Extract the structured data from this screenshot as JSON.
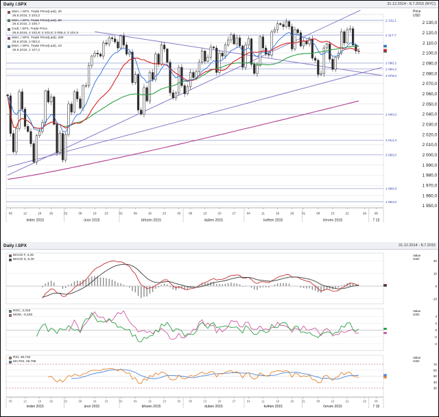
{
  "top": {
    "title": "Daily /.SPX",
    "date_range": "31.12.2014 - 8.7.2015 (NYC)",
    "price_axis": {
      "line1": "Price",
      "line2": "USD"
    },
    "legend": [
      {
        "color": "#d42020",
        "label": "SMA, /.SPX, Trade Price(Last), 20",
        "value": "26.6.2015, 2 103,2"
      },
      {
        "color": "#2f9e44",
        "label": "SMA, /.SPX, Trade Price(Last), 50",
        "value": "26.6.2015, 2 106,7"
      },
      {
        "color": "#5a5a5a",
        "label": "Cndl, /.SPX, Trade Price",
        "value": "26.6.2015, 2 102,8; 2 102,8; 2 095,4; 2 101,5"
      },
      {
        "color": "#b03a8c",
        "label": "SMA, /.SPX, Trade Price(Last), 200",
        "value": "26.6.2015, 2 053,2"
      },
      {
        "color": "#2f6fd4",
        "label": "EMA, /.SPX, Trade Price(Last), 10",
        "value": "26.6.2015, 2 107,2"
      }
    ]
  },
  "bottom": {
    "title": "Daily /.SPX",
    "date_range": "31.12.2014 - 8.7.2015",
    "panels": [
      {
        "name": "MACD",
        "axis": {
          "line1": "Value",
          "line2": "USD"
        },
        "legend": [
          {
            "color": "#c43030",
            "label": "MACD F, 3,45"
          },
          {
            "color": "#3a3a3a",
            "label": "MACD S, 5,40"
          }
        ]
      },
      {
        "name": "ROC",
        "axis": {
          "line1": "Value",
          "line2": "USD"
        },
        "legend": [
          {
            "color": "#2f9e44",
            "label": "ROC, 2,316"
          },
          {
            "color": "#cf5aa0",
            "label": "MOM, -0,228"
          }
        ]
      },
      {
        "name": "RSI",
        "axis": {
          "line1": "Value",
          "line2": "USD"
        },
        "legend": [
          {
            "color": "#e0842e",
            "label": "RSI, 48,732"
          },
          {
            "color": "#4a86d8",
            "label": "MA RSI, 49,796"
          }
        ]
      }
    ]
  },
  "colors": {
    "sma20": "#d42020",
    "sma50": "#2f9e44",
    "ema10": "#2f6fd4",
    "sma200": "#b03a8c",
    "trend": "#8678c8",
    "level": "#8890cc",
    "level_label": "#2c3bb0",
    "candle_up": "#ffffff",
    "candle_down": "#2a2a2a",
    "candle_border": "#3a3a3a",
    "macd_line": "#c43030",
    "macd_signal": "#3a3a3a",
    "macd_hist": "#8a8a8a",
    "roc": "#2f9e44",
    "mom": "#cf5aa0",
    "rsi": "#e0842e",
    "rsi_ma": "#4a86d8",
    "grid": "#e2e2e6",
    "axis_text": "#222222"
  },
  "chart_data": [
    {
      "type": "candlestick",
      "title": "Daily /.SPX",
      "subtitle": "31.12.2014 - 8.7.2015 (NYC)",
      "ylabel": "Price USD",
      "ylim": [
        1948,
        2138
      ],
      "yticks": [
        2130,
        2120,
        2110,
        2100,
        2090,
        2080,
        2070,
        2060,
        2050,
        2040,
        2030,
        2020,
        2010,
        2000,
        1990,
        1980,
        1970,
        1960,
        1950
      ],
      "open_first": 2059,
      "closes": [
        2058,
        2021,
        2003,
        2026,
        2062,
        2045,
        2028,
        2023,
        2011,
        1993,
        2019,
        2023,
        2032,
        2063,
        2052,
        2057,
        2030,
        2002,
        2021,
        1995,
        2020,
        2050,
        2042,
        2062,
        2055,
        2046,
        2068,
        2068,
        2088,
        2097,
        2100,
        2099,
        2097,
        2110,
        2109,
        2115,
        2114,
        2111,
        2105,
        2117,
        2108,
        2099,
        2101,
        2071,
        2079,
        2044,
        2040,
        2066,
        2053,
        2081,
        2074,
        2099,
        2089,
        2108,
        2104,
        2091,
        2061,
        2056,
        2061,
        2086,
        2068,
        2060,
        2067,
        2081,
        2076,
        2082,
        2091,
        2102,
        2092,
        2096,
        2106,
        2105,
        2081,
        2100,
        2097,
        2108,
        2113,
        2118,
        2109,
        2115,
        2107,
        2086,
        2108,
        2114,
        2089,
        2080,
        2088,
        2116,
        2105,
        2099,
        2098,
        2121,
        2123,
        2129,
        2128,
        2126,
        2131,
        2126,
        2104,
        2123,
        2120,
        2107,
        2112,
        2109,
        2114,
        2095,
        2093,
        2079,
        2080,
        2105,
        2109,
        2094,
        2084,
        2096,
        2100,
        2121,
        2110,
        2123,
        2124,
        2108,
        2102,
        2101.5
      ],
      "total_slots": 130,
      "day_ticks": [
        {
          "label": "05",
          "i": 1
        },
        {
          "label": "12",
          "i": 6
        },
        {
          "label": "19",
          "i": 11
        },
        {
          "label": "26",
          "i": 15
        },
        {
          "label": "02",
          "i": 20
        },
        {
          "label": "09",
          "i": 25
        },
        {
          "label": "16",
          "i": 30
        },
        {
          "label": "23",
          "i": 34
        },
        {
          "label": "02",
          "i": 39
        },
        {
          "label": "09",
          "i": 44
        },
        {
          "label": "16",
          "i": 49
        },
        {
          "label": "23",
          "i": 54
        },
        {
          "label": "30",
          "i": 59
        },
        {
          "label": "06",
          "i": 63
        },
        {
          "label": "13",
          "i": 68
        },
        {
          "label": "20",
          "i": 73
        },
        {
          "label": "27",
          "i": 78
        },
        {
          "label": "04",
          "i": 83
        },
        {
          "label": "11",
          "i": 88
        },
        {
          "label": "18",
          "i": 93
        },
        {
          "label": "26",
          "i": 98
        },
        {
          "label": "01",
          "i": 102
        },
        {
          "label": "08",
          "i": 107
        },
        {
          "label": "15",
          "i": 112
        },
        {
          "label": "22",
          "i": 117
        },
        {
          "label": "29",
          "i": 123
        },
        {
          "label": "06",
          "i": 127
        }
      ],
      "month_labels": [
        {
          "label": "leden 2015",
          "i": 9.5
        },
        {
          "label": "únor 2015",
          "i": 29
        },
        {
          "label": "březen 2015",
          "i": 49.5
        },
        {
          "label": "duben 2015",
          "i": 71
        },
        {
          "label": "květen 2015",
          "i": 91.5
        },
        {
          "label": "červen 2015",
          "i": 112
        },
        {
          "label": "7 15",
          "i": 127
        }
      ],
      "month_boundaries": [
        -0.5,
        19.5,
        38.5,
        60.5,
        81.5,
        101.5,
        124.5,
        129.5
      ],
      "levels": [
        {
          "label": "2 132,1",
          "value": 2132.1
        },
        {
          "label": "2 117,7",
          "value": 2117.7
        },
        {
          "label": "2 090,2",
          "value": 2090.2
        },
        {
          "label": "2 078,0",
          "value": 2078.0
        },
        {
          "label": "2 084,3",
          "value": 2084.3
        },
        {
          "label": "2 040,0",
          "value": 2040.0
        },
        {
          "label": "2 014,4",
          "value": 2014.4
        },
        {
          "label": "2 000,0",
          "value": 2000.0
        },
        {
          "label": "1 966,9",
          "value": 1966.9
        },
        {
          "label": "1 954,0",
          "value": 1954.0
        }
      ],
      "trend_lines": [
        {
          "i1": 0,
          "v1": 1980,
          "i2": 129,
          "v2": 2152
        },
        {
          "i1": 0,
          "v1": 1988,
          "i2": 129,
          "v2": 2086
        },
        {
          "i1": 30,
          "v1": 2121,
          "i2": 129,
          "v2": 2078
        }
      ],
      "sma_periods": {
        "sma20": 20,
        "sma50": 50,
        "ema10": 10,
        "sma200": 200
      },
      "sma200_approx": {
        "start": 1976,
        "end": 2053
      }
    },
    {
      "type": "bar",
      "name": "MACD",
      "params": {
        "fast": 12,
        "slow": 26,
        "signal": 9
      },
      "ylim": [
        -14,
        26
      ],
      "yticks": [
        20,
        10,
        0,
        -10
      ],
      "last_values": {
        "macd": 3.45,
        "signal": 5.4
      }
    },
    {
      "type": "line",
      "name": "ROC-MOM",
      "params": {
        "roc": 10,
        "mom": 21
      },
      "ylim": [
        -6,
        6.3
      ],
      "yticks": [
        4,
        2,
        0,
        -2,
        -4
      ],
      "last_values": {
        "roc": 2.316,
        "mom": -0.228
      }
    },
    {
      "type": "line",
      "name": "RSI",
      "params": {
        "rsi": 14,
        "ma": 9
      },
      "ylim": [
        15,
        85
      ],
      "yticks": [
        70,
        60,
        50,
        40,
        30
      ],
      "levels": [
        70,
        50,
        30
      ],
      "last_values": {
        "rsi": 48.732,
        "ma_rsi": 49.796
      }
    }
  ]
}
